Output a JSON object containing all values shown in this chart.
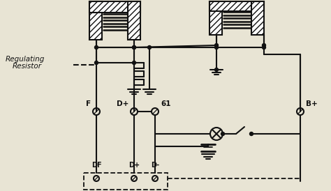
{
  "bg_color": "#e8e4d4",
  "line_color": "#111111",
  "lw": 1.5,
  "labels": {
    "reg1": "Regulating",
    "reg2": "Resistor",
    "F": "F",
    "Dplus": "D+",
    "num61": "61",
    "Bplus": "B+",
    "DF": "DF",
    "Dplus_bot": "D+",
    "Dminus": "D-"
  }
}
